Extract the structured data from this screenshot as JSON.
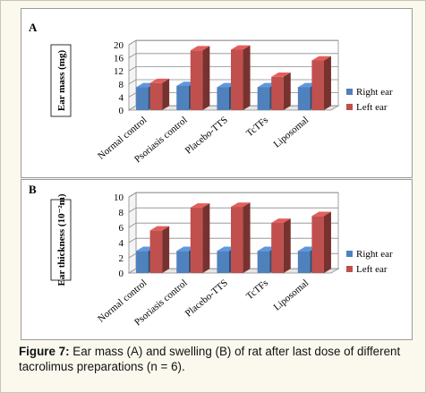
{
  "chart_data": [
    {
      "type": "bar",
      "panel_label": "A",
      "ylabel": "Ear mass (mg)",
      "ylim": [
        0,
        20
      ],
      "yticks": [
        0,
        4,
        8,
        12,
        16,
        20
      ],
      "grid": true,
      "legend_placement": "right",
      "categories": [
        "Normal control",
        "Psoriasis control",
        "Placebo-TTS",
        "TcTFs",
        "Liposomal"
      ],
      "series": [
        {
          "name": "Right ear",
          "color": "#4f81bd",
          "values": [
            7.0,
            7.4,
            7.0,
            7.0,
            7.0
          ]
        },
        {
          "name": "Left ear",
          "color": "#c0504d",
          "values": [
            8.3,
            18.3,
            18.5,
            10.2,
            15.2
          ]
        }
      ]
    },
    {
      "type": "bar",
      "panel_label": "B",
      "ylabel": "Ear thickness (10⁻²m)",
      "ylim": [
        0,
        10
      ],
      "yticks": [
        0,
        2,
        4,
        6,
        8,
        10
      ],
      "grid": true,
      "legend_placement": "right",
      "categories": [
        "Normal control",
        "Psoriasis control",
        "Placebo-TTS",
        "TcTFs",
        "Liposomal"
      ],
      "series": [
        {
          "name": "Right ear",
          "color": "#4f81bd",
          "values": [
            2.9,
            2.9,
            2.9,
            2.9,
            2.9
          ]
        },
        {
          "name": "Left ear",
          "color": "#c0504d",
          "values": [
            5.6,
            8.6,
            8.7,
            6.6,
            7.5
          ]
        }
      ]
    }
  ],
  "caption": {
    "label": "Figure 7:",
    "text": " Ear mass (A) and swelling (B) of rat after last dose of different tacrolimus preparations (n = 6)."
  }
}
